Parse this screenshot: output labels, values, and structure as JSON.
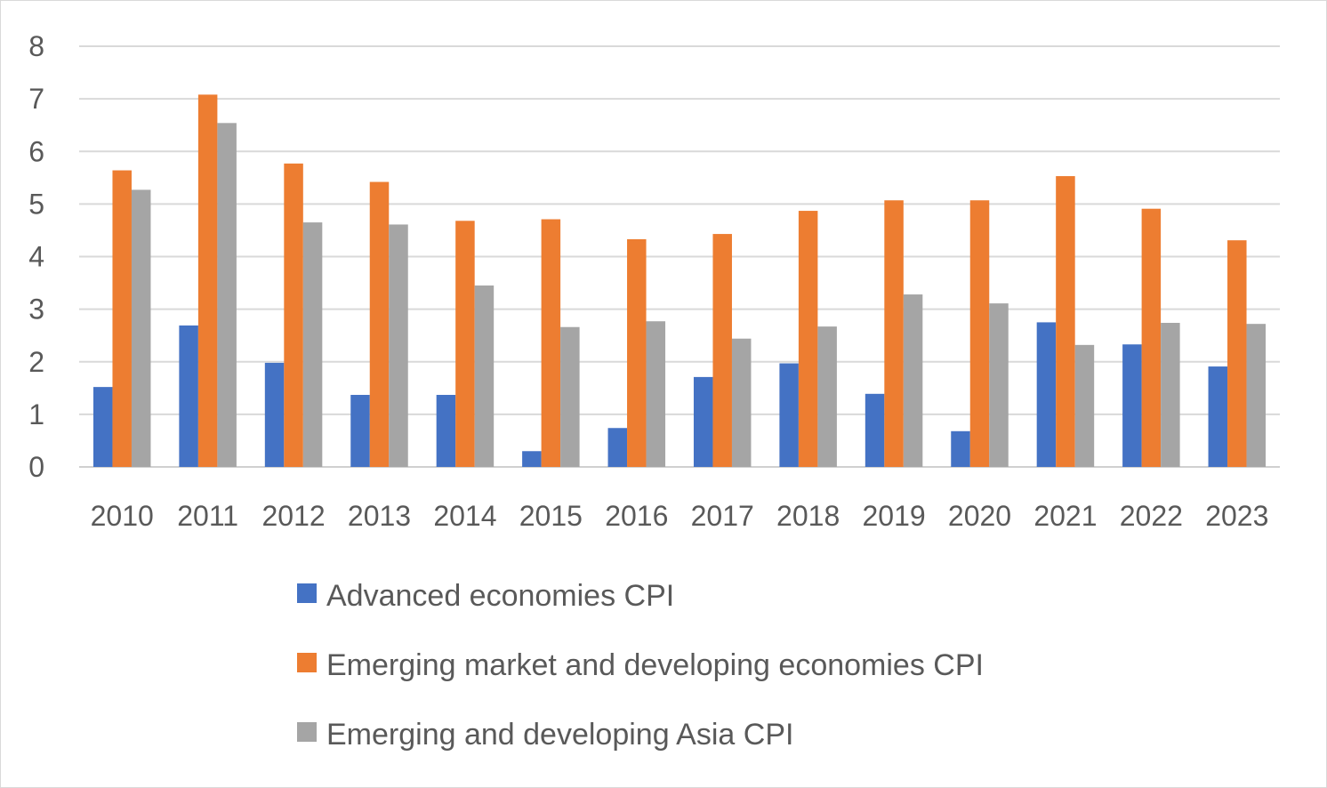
{
  "chart_data": {
    "type": "bar",
    "title": "",
    "xlabel": "",
    "ylabel": "",
    "ylim": [
      0,
      8
    ],
    "yticks": [
      0,
      1,
      2,
      3,
      4,
      5,
      6,
      7,
      8
    ],
    "grid": true,
    "legend_position": "bottom",
    "categories": [
      "2010",
      "2011",
      "2012",
      "2013",
      "2014",
      "2015",
      "2016",
      "2017",
      "2018",
      "2019",
      "2020",
      "2021",
      "2022",
      "2023"
    ],
    "series": [
      {
        "name": "Advanced economies CPI",
        "color": "#4472C4",
        "values": [
          1.52,
          2.69,
          1.98,
          1.37,
          1.37,
          0.3,
          0.74,
          1.71,
          1.97,
          1.39,
          0.68,
          2.75,
          2.33,
          1.91
        ]
      },
      {
        "name": "Emerging market and developing economies CPI",
        "color": "#ED7D31",
        "values": [
          5.64,
          7.08,
          5.77,
          5.42,
          4.68,
          4.71,
          4.33,
          4.43,
          4.87,
          5.07,
          5.07,
          5.53,
          4.91,
          4.31
        ]
      },
      {
        "name": "Emerging and developing Asia CPI",
        "color": "#A5A5A5",
        "values": [
          5.27,
          6.54,
          4.65,
          4.61,
          3.45,
          2.66,
          2.77,
          2.44,
          2.67,
          3.28,
          3.11,
          2.32,
          2.74,
          2.72
        ]
      }
    ]
  }
}
